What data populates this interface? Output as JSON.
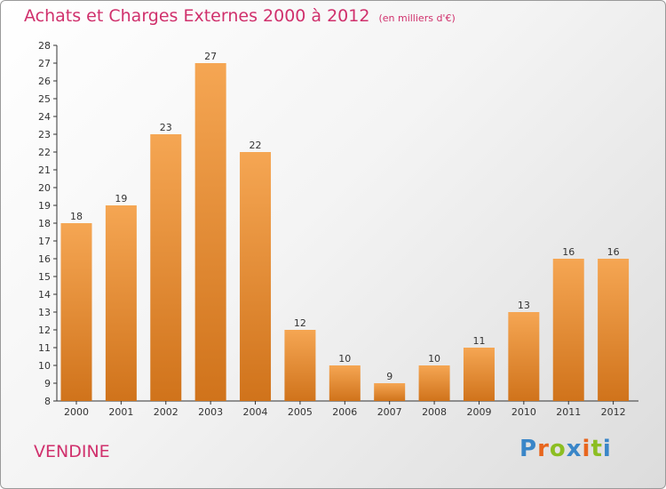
{
  "header": {
    "title": "Achats et Charges Externes 2000 à 2012",
    "subtitle": "(en milliers d'€)"
  },
  "footer": {
    "commune": "VENDINE",
    "brand": "Proxiti"
  },
  "colors": {
    "title": "#d0306c",
    "bar_top": "#f5a653",
    "bar_bottom": "#d0731b",
    "brand_letters": [
      "#3a86c8",
      "#e8661e",
      "#8cbe22",
      "#3a86c8",
      "#e8661e",
      "#8cbe22",
      "#3a86c8"
    ]
  },
  "chart_data": {
    "type": "bar",
    "categories": [
      "2000",
      "2001",
      "2002",
      "2003",
      "2004",
      "2005",
      "2006",
      "2007",
      "2008",
      "2009",
      "2010",
      "2011",
      "2012"
    ],
    "values": [
      18,
      19,
      23,
      27,
      22,
      12,
      10,
      9,
      10,
      11,
      13,
      16,
      16
    ],
    "ylim": [
      8,
      28
    ],
    "yticks": [
      8,
      9,
      10,
      11,
      12,
      13,
      14,
      15,
      16,
      17,
      18,
      19,
      20,
      21,
      22,
      23,
      24,
      25,
      26,
      27,
      28
    ],
    "grid": false,
    "data_labels": true
  }
}
